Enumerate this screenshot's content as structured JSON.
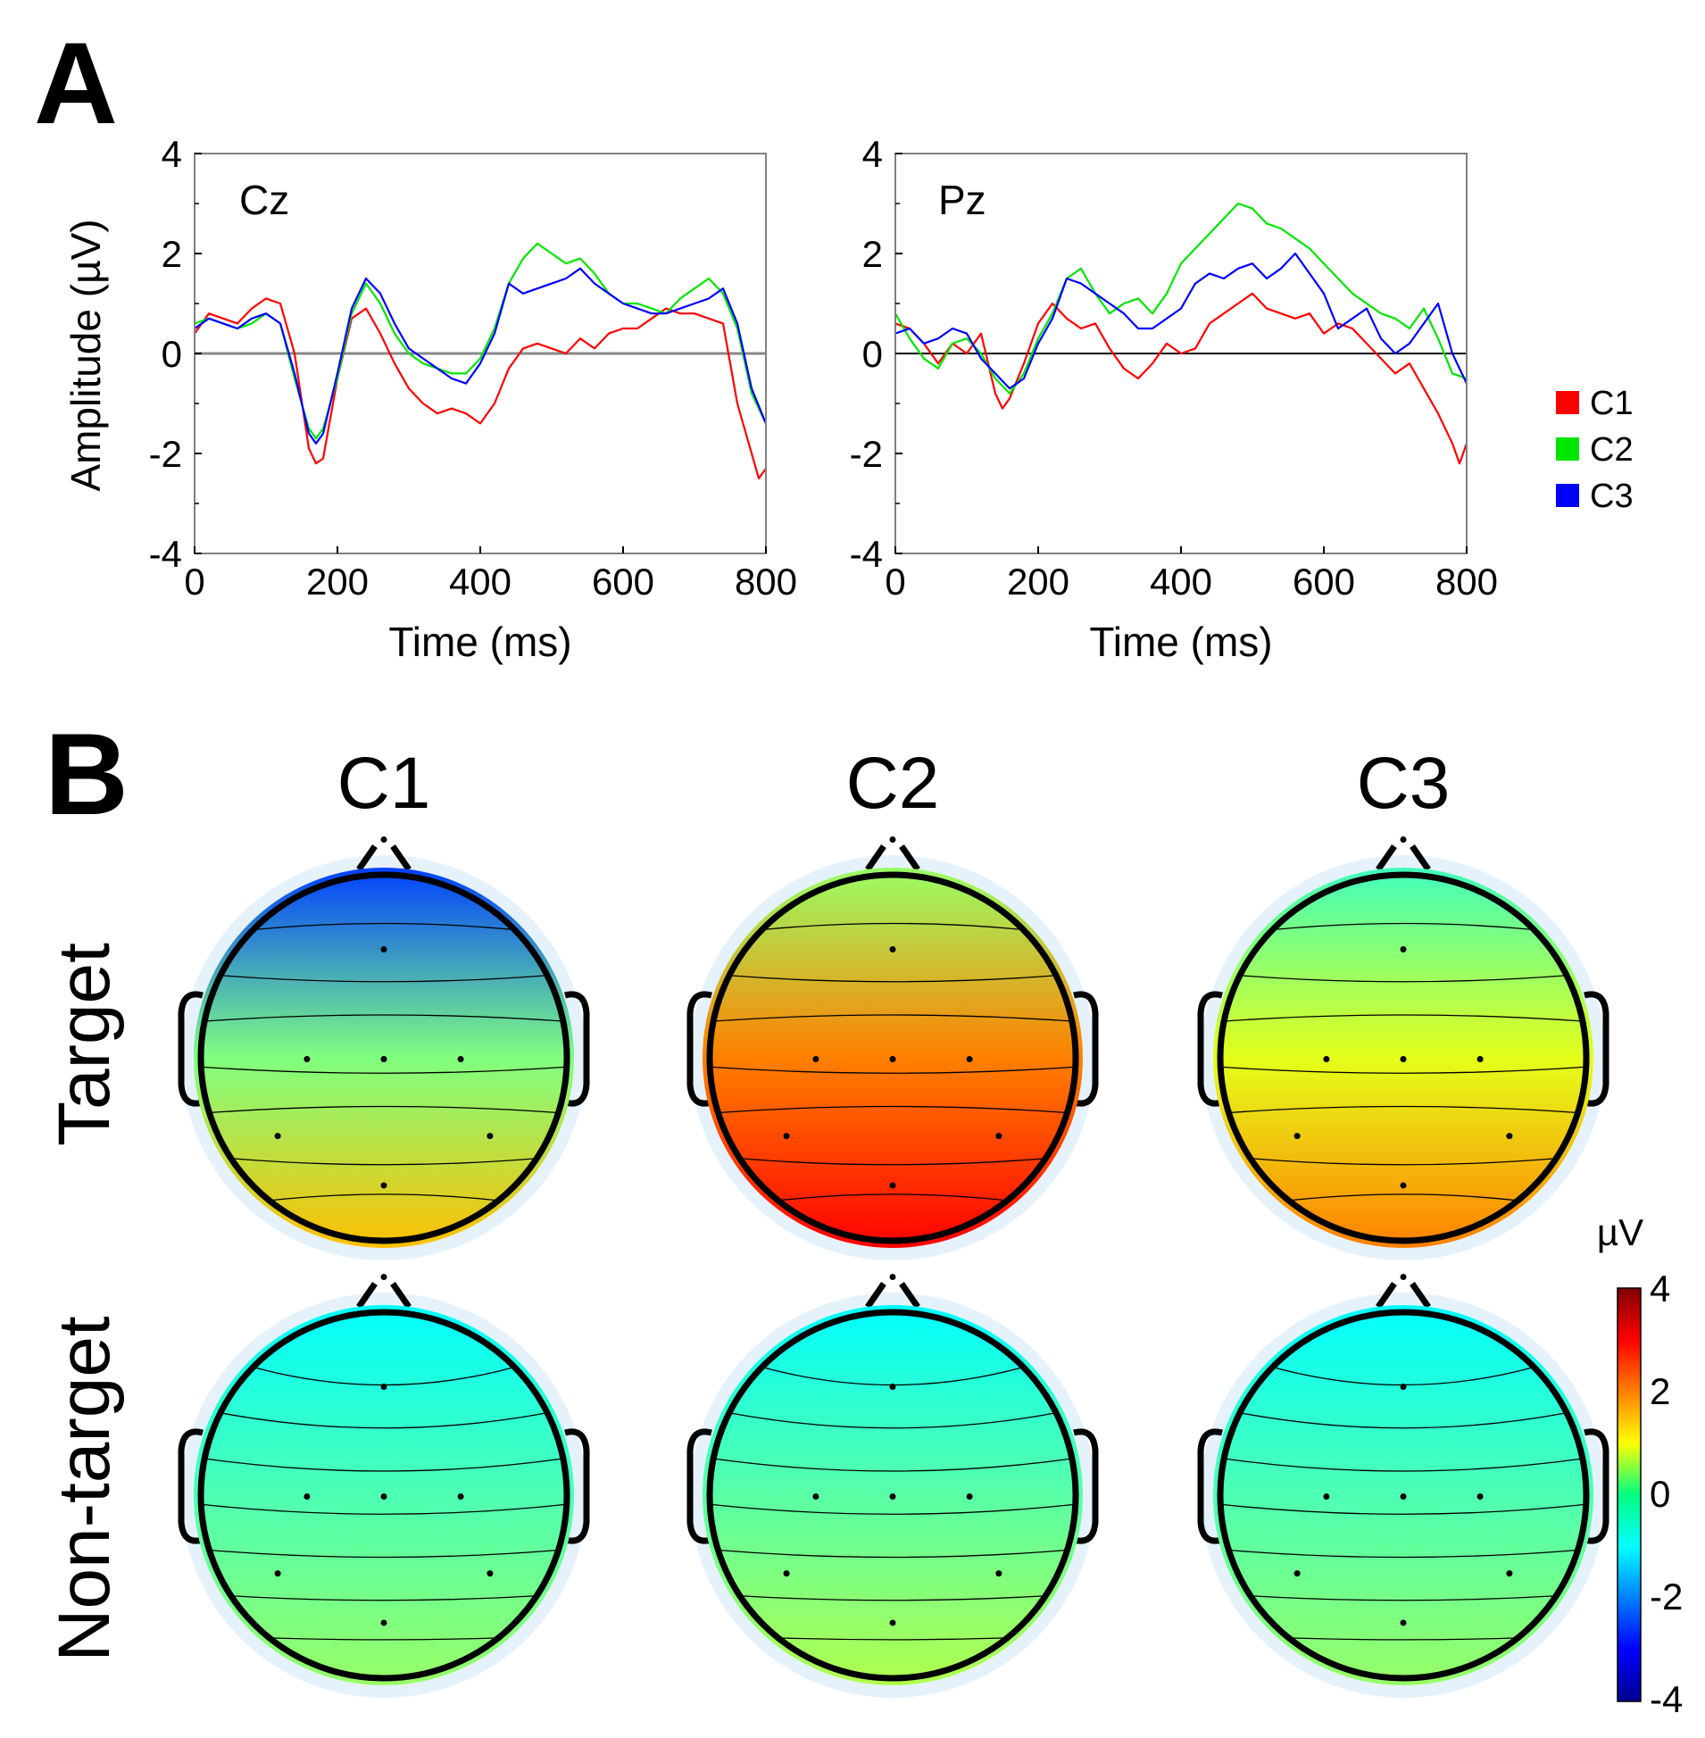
{
  "panels": {
    "a": "A",
    "b": "B"
  },
  "chart_data": [
    {
      "type": "line",
      "channel": "Cz",
      "xlabel": "Time (ms)",
      "ylabel": "Amplitude (µV)",
      "xlim": [
        0,
        800
      ],
      "ylim": [
        -4,
        4
      ],
      "xticks": [
        "0",
        "200",
        "400",
        "600",
        "800"
      ],
      "yticks": [
        "4",
        "2",
        "0",
        "-2",
        "-4"
      ],
      "series": [
        {
          "name": "C1",
          "color": "#ff0000",
          "x": [
            0,
            20,
            40,
            60,
            80,
            100,
            120,
            140,
            160,
            170,
            180,
            200,
            220,
            240,
            260,
            280,
            300,
            320,
            340,
            360,
            380,
            400,
            420,
            440,
            460,
            480,
            500,
            520,
            540,
            560,
            580,
            600,
            620,
            640,
            660,
            680,
            700,
            720,
            740,
            760,
            780,
            790,
            800
          ],
          "y": [
            0.4,
            0.8,
            0.7,
            0.6,
            0.9,
            1.1,
            1.0,
            0.0,
            -1.9,
            -2.2,
            -2.1,
            -0.5,
            0.7,
            0.9,
            0.4,
            -0.2,
            -0.7,
            -1.0,
            -1.2,
            -1.1,
            -1.2,
            -1.4,
            -1.0,
            -0.3,
            0.1,
            0.2,
            0.1,
            0.0,
            0.3,
            0.1,
            0.4,
            0.5,
            0.5,
            0.7,
            0.9,
            0.8,
            0.8,
            0.7,
            0.6,
            -1.0,
            -2.0,
            -2.5,
            -2.3
          ]
        },
        {
          "name": "C2",
          "color": "#00e600",
          "x": [
            0,
            20,
            40,
            60,
            80,
            100,
            120,
            140,
            160,
            170,
            180,
            200,
            220,
            240,
            260,
            280,
            300,
            320,
            340,
            360,
            380,
            400,
            420,
            440,
            460,
            480,
            500,
            520,
            540,
            560,
            580,
            600,
            620,
            640,
            660,
            680,
            700,
            720,
            740,
            760,
            780,
            800
          ],
          "y": [
            0.6,
            0.7,
            0.6,
            0.5,
            0.6,
            0.8,
            0.6,
            -0.5,
            -1.5,
            -1.7,
            -1.5,
            -0.5,
            0.8,
            1.4,
            1.0,
            0.4,
            0.0,
            -0.2,
            -0.3,
            -0.4,
            -0.4,
            -0.1,
            0.5,
            1.4,
            1.9,
            2.2,
            2.0,
            1.8,
            1.9,
            1.6,
            1.2,
            1.0,
            1.0,
            0.9,
            0.8,
            1.1,
            1.3,
            1.5,
            1.2,
            0.5,
            -0.8,
            -1.4
          ]
        },
        {
          "name": "C3",
          "color": "#0000ff",
          "x": [
            0,
            20,
            40,
            60,
            80,
            100,
            120,
            140,
            160,
            170,
            180,
            200,
            220,
            240,
            260,
            280,
            300,
            320,
            340,
            360,
            380,
            400,
            420,
            440,
            460,
            480,
            500,
            520,
            540,
            560,
            580,
            600,
            620,
            640,
            660,
            680,
            700,
            720,
            740,
            760,
            780,
            800
          ],
          "y": [
            0.5,
            0.7,
            0.6,
            0.5,
            0.7,
            0.8,
            0.6,
            -0.4,
            -1.6,
            -1.8,
            -1.6,
            -0.4,
            0.9,
            1.5,
            1.2,
            0.6,
            0.1,
            -0.1,
            -0.3,
            -0.5,
            -0.6,
            -0.2,
            0.4,
            1.4,
            1.2,
            1.3,
            1.4,
            1.5,
            1.7,
            1.4,
            1.2,
            1.0,
            0.9,
            0.8,
            0.8,
            0.9,
            1.0,
            1.1,
            1.3,
            0.6,
            -0.7,
            -1.4
          ]
        }
      ]
    },
    {
      "type": "line",
      "channel": "Pz",
      "xlabel": "Time (ms)",
      "ylabel": "",
      "xlim": [
        0,
        800
      ],
      "ylim": [
        -4,
        4
      ],
      "xticks": [
        "0",
        "200",
        "400",
        "600",
        "800"
      ],
      "yticks": [
        "4",
        "2",
        "0",
        "-2",
        "-4"
      ],
      "series": [
        {
          "name": "C1",
          "color": "#ff0000",
          "x": [
            0,
            20,
            40,
            60,
            80,
            100,
            120,
            140,
            150,
            160,
            180,
            200,
            220,
            240,
            260,
            280,
            300,
            320,
            340,
            360,
            380,
            400,
            420,
            440,
            460,
            480,
            500,
            520,
            540,
            560,
            580,
            600,
            620,
            640,
            660,
            680,
            700,
            720,
            740,
            760,
            780,
            790,
            800
          ],
          "y": [
            0.6,
            0.5,
            0.2,
            -0.2,
            0.2,
            0.0,
            0.4,
            -0.8,
            -1.1,
            -0.9,
            -0.2,
            0.6,
            1.0,
            0.7,
            0.5,
            0.6,
            0.1,
            -0.3,
            -0.5,
            -0.2,
            0.2,
            0.0,
            0.1,
            0.6,
            0.8,
            1.0,
            1.2,
            0.9,
            0.8,
            0.7,
            0.8,
            0.4,
            0.6,
            0.5,
            0.2,
            -0.1,
            -0.4,
            -0.2,
            -0.7,
            -1.2,
            -1.8,
            -2.2,
            -1.8
          ]
        },
        {
          "name": "C2",
          "color": "#00e600",
          "x": [
            0,
            20,
            40,
            60,
            80,
            100,
            120,
            140,
            160,
            180,
            200,
            220,
            240,
            260,
            280,
            300,
            320,
            340,
            360,
            380,
            400,
            420,
            440,
            460,
            480,
            500,
            520,
            540,
            560,
            580,
            600,
            620,
            640,
            660,
            680,
            700,
            720,
            740,
            760,
            780,
            800
          ],
          "y": [
            0.8,
            0.3,
            -0.1,
            -0.3,
            0.2,
            0.3,
            0.0,
            -0.5,
            -0.8,
            -0.4,
            0.3,
            0.8,
            1.5,
            1.7,
            1.2,
            0.8,
            1.0,
            1.1,
            0.8,
            1.2,
            1.8,
            2.1,
            2.4,
            2.7,
            3.0,
            2.9,
            2.6,
            2.5,
            2.3,
            2.1,
            1.8,
            1.5,
            1.2,
            1.0,
            0.8,
            0.7,
            0.5,
            0.9,
            0.3,
            -0.4,
            -0.5
          ]
        },
        {
          "name": "C3",
          "color": "#0000ff",
          "x": [
            0,
            20,
            40,
            60,
            80,
            100,
            120,
            140,
            160,
            180,
            200,
            220,
            240,
            260,
            280,
            300,
            320,
            340,
            360,
            380,
            400,
            420,
            440,
            460,
            480,
            500,
            520,
            540,
            560,
            580,
            600,
            620,
            640,
            660,
            680,
            700,
            720,
            740,
            760,
            780,
            800
          ],
          "y": [
            0.4,
            0.5,
            0.2,
            0.3,
            0.5,
            0.4,
            -0.1,
            -0.4,
            -0.7,
            -0.5,
            0.2,
            0.7,
            1.5,
            1.4,
            1.2,
            1.0,
            0.8,
            0.5,
            0.5,
            0.7,
            0.9,
            1.4,
            1.6,
            1.5,
            1.7,
            1.8,
            1.5,
            1.7,
            2.0,
            1.6,
            1.2,
            0.5,
            0.7,
            0.9,
            0.3,
            0.0,
            0.2,
            0.6,
            1.0,
            0.0,
            -0.6
          ]
        }
      ]
    },
    {
      "type": "heatmap",
      "columns": [
        "C1",
        "C2",
        "C3"
      ],
      "rows": [
        "Target",
        "Non-target"
      ],
      "colorbar": {
        "unit": "µV",
        "ticks": [
          "4",
          "2",
          "0",
          "-2",
          "-4"
        ],
        "range": [
          -4,
          4
        ]
      },
      "maps": [
        {
          "condition": "C1",
          "row": "Target",
          "frontal": -2.5,
          "central": 0.0,
          "parietal": 1.5
        },
        {
          "condition": "C2",
          "row": "Target",
          "frontal": 0.2,
          "central": 2.0,
          "parietal": 3.0
        },
        {
          "condition": "C3",
          "row": "Target",
          "frontal": -0.5,
          "central": 0.8,
          "parietal": 2.0
        },
        {
          "condition": "C1",
          "row": "Non-target",
          "frontal": -1.0,
          "central": -0.4,
          "parietal": 0.2
        },
        {
          "condition": "C2",
          "row": "Non-target",
          "frontal": -1.0,
          "central": -0.3,
          "parietal": 0.4
        },
        {
          "condition": "C3",
          "row": "Non-target",
          "frontal": -1.0,
          "central": -0.4,
          "parietal": 0.2
        }
      ]
    }
  ],
  "legend": [
    {
      "label": "C1",
      "color": "#ff0000"
    },
    {
      "label": "C2",
      "color": "#00e600"
    },
    {
      "label": "C3",
      "color": "#0000ff"
    }
  ]
}
